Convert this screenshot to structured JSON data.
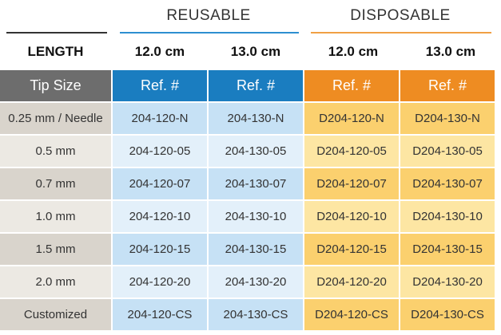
{
  "groups": {
    "reusable": {
      "label": "REUSABLE",
      "color": "#2d8fd0"
    },
    "disposable": {
      "label": "DISPOSABLE",
      "color": "#f0a044"
    }
  },
  "length_row": {
    "label": "LENGTH",
    "values": [
      "12.0 cm",
      "13.0 cm",
      "12.0 cm",
      "13.0 cm"
    ]
  },
  "table": {
    "header": [
      "Tip Size",
      "Ref. #",
      "Ref. #",
      "Ref. #",
      "Ref. #"
    ],
    "header_colors": [
      "#6d6d6d",
      "#1a7dc0",
      "#1a7dc0",
      "#ee8c22",
      "#ee8c22"
    ],
    "rows": [
      [
        "0.25 mm / Needle",
        "204-120-N",
        "204-130-N",
        "D204-120-N",
        "D204-130-N"
      ],
      [
        "0.5 mm",
        "204-120-05",
        "204-130-05",
        "D204-120-05",
        "D204-130-05"
      ],
      [
        "0.7 mm",
        "204-120-07",
        "204-130-07",
        "D204-120-07",
        "D204-130-07"
      ],
      [
        "1.0 mm",
        "204-120-10",
        "204-130-10",
        "D204-120-10",
        "D204-130-10"
      ],
      [
        "1.5 mm",
        "204-120-15",
        "204-130-15",
        "D204-120-15",
        "D204-130-15"
      ],
      [
        "2.0 mm",
        "204-120-20",
        "204-130-20",
        "D204-120-20",
        "D204-130-20"
      ],
      [
        "Customized",
        "204-120-CS",
        "204-130-CS",
        "D204-120-CS",
        "D204-130-CS"
      ]
    ],
    "row_colors": {
      "odd": [
        "#d9d4cc",
        "#c6e1f5",
        "#c6e1f5",
        "#fbd06e",
        "#fbd06e"
      ],
      "even": [
        "#ece9e3",
        "#e3f0fa",
        "#e3f0fa",
        "#fde6a3",
        "#fde6a3"
      ]
    }
  }
}
